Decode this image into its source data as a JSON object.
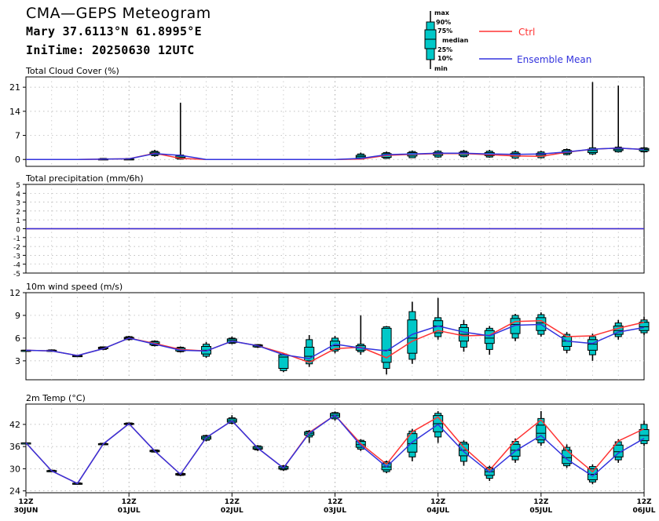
{
  "header": {
    "title": "CMA—GEPS Meteogram",
    "location": "Mary 37.6113°N 61.8995°E",
    "init_time": "IniTime: 20250630 12UTC"
  },
  "legend": {
    "box_labels": [
      "max",
      "90%",
      "75%",
      "median",
      "25%",
      "10%",
      "min"
    ],
    "ctrl_label": "Ctrl",
    "mean_label": "Ensemble Mean",
    "ctrl_color": "#ff3333",
    "mean_color": "#3333dd",
    "box_fill": "#00c8c8"
  },
  "time_axis": {
    "ticks": [
      {
        "top": "12Z",
        "bottom": "30JUN"
      },
      {
        "top": "12Z",
        "bottom": "01JUL"
      },
      {
        "top": "12Z",
        "bottom": "02JUL"
      },
      {
        "top": "12Z",
        "bottom": "03JUL"
      },
      {
        "top": "12Z",
        "bottom": "04JUL"
      },
      {
        "top": "12Z",
        "bottom": "05JUL"
      },
      {
        "top": "12Z",
        "bottom": "06JUL"
      }
    ],
    "steps_hours": 6,
    "n_steps": 25
  },
  "chart_data": [
    {
      "type": "boxplot",
      "title": "Total Cloud Cover (%)",
      "ylim": [
        -2,
        24
      ],
      "yticks": [
        0,
        7,
        14,
        21
      ],
      "grid": true,
      "boxes": [
        null,
        null,
        null,
        {
          "min": 0,
          "p10": 0,
          "p25": 0,
          "median": 0.1,
          "p75": 0.2,
          "p90": 0.3,
          "max": 0.4
        },
        {
          "min": 0,
          "p10": 0,
          "p25": 0,
          "median": 0.1,
          "p75": 0.2,
          "p90": 0.3,
          "max": 0.4
        },
        {
          "min": 0.8,
          "p10": 1.1,
          "p25": 1.4,
          "median": 1.8,
          "p75": 2.1,
          "p90": 2.4,
          "max": 2.8
        },
        {
          "min": 0,
          "p10": 0.1,
          "p25": 0.3,
          "median": 0.6,
          "p75": 1.0,
          "p90": 1.3,
          "max": 16.5
        },
        null,
        null,
        null,
        null,
        null,
        null,
        {
          "min": 0,
          "p10": 0.1,
          "p25": 0.4,
          "median": 0.8,
          "p75": 1.2,
          "p90": 1.6,
          "max": 2.0
        },
        {
          "min": 0.2,
          "p10": 0.3,
          "p25": 0.6,
          "median": 1.3,
          "p75": 1.7,
          "p90": 2.0,
          "max": 2.3
        },
        {
          "min": 0.4,
          "p10": 0.5,
          "p25": 1.0,
          "median": 1.6,
          "p75": 2.0,
          "p90": 2.3,
          "max": 2.6
        },
        {
          "min": 0.5,
          "p10": 0.7,
          "p25": 1.2,
          "median": 1.6,
          "p75": 2.0,
          "p90": 2.4,
          "max": 2.7
        },
        {
          "min": 0.6,
          "p10": 0.8,
          "p25": 1.2,
          "median": 1.7,
          "p75": 2.1,
          "p90": 2.4,
          "max": 2.8
        },
        {
          "min": 0.5,
          "p10": 0.7,
          "p25": 1.1,
          "median": 1.6,
          "p75": 2.0,
          "p90": 2.4,
          "max": 2.8
        },
        {
          "min": 0.2,
          "p10": 0.4,
          "p25": 0.9,
          "median": 1.4,
          "p75": 1.8,
          "p90": 2.2,
          "max": 2.6
        },
        {
          "min": 0.3,
          "p10": 0.5,
          "p25": 1.0,
          "median": 1.4,
          "p75": 1.8,
          "p90": 2.2,
          "max": 2.5
        },
        {
          "min": 1.2,
          "p10": 1.4,
          "p25": 1.8,
          "median": 2.2,
          "p75": 2.6,
          "p90": 2.9,
          "max": 3.2
        },
        {
          "min": 1.3,
          "p10": 1.6,
          "p25": 2.0,
          "median": 2.6,
          "p75": 3.0,
          "p90": 3.4,
          "max": 22.5
        },
        {
          "min": 2.0,
          "p10": 2.2,
          "p25": 2.6,
          "median": 3.0,
          "p75": 3.3,
          "p90": 3.6,
          "max": 21.5
        },
        {
          "min": 2.0,
          "p10": 2.2,
          "p25": 2.5,
          "median": 2.9,
          "p75": 3.2,
          "p90": 3.4,
          "max": 3.6
        }
      ],
      "ctrl": [
        0,
        0,
        0,
        0.1,
        0.2,
        1.8,
        0.3,
        0,
        0,
        0,
        0,
        0,
        0,
        0.1,
        1.2,
        1.5,
        1.7,
        1.7,
        1.4,
        1.0,
        0.9,
        2.1,
        3.0,
        3.3,
        2.9
      ],
      "mean": [
        0,
        0,
        0,
        0.1,
        0.2,
        1.7,
        1.2,
        0,
        0,
        0,
        0,
        0,
        0,
        0.3,
        1.4,
        1.6,
        1.8,
        1.8,
        1.6,
        1.5,
        1.6,
        2.2,
        3.0,
        3.3,
        2.9
      ]
    },
    {
      "type": "line",
      "title": "Total precipitation (mm/6h)",
      "ylim": [
        -5,
        5
      ],
      "yticks": [
        -5,
        -4,
        -3,
        -2,
        -1,
        0,
        1,
        2,
        3,
        4,
        5
      ],
      "grid": true,
      "ctrl": [
        0,
        0,
        0,
        0,
        0,
        0,
        0,
        0,
        0,
        0,
        0,
        0,
        0,
        0,
        0,
        0,
        0,
        0,
        0,
        0,
        0,
        0,
        0,
        0,
        0
      ],
      "mean": [
        0,
        0,
        0,
        0,
        0,
        0,
        0,
        0,
        0,
        0,
        0,
        0,
        0,
        0,
        0,
        0,
        0,
        0,
        0,
        0,
        0,
        0,
        0,
        0,
        0
      ]
    },
    {
      "type": "boxplot",
      "title": "10m wind speed (m/s)",
      "ylim": [
        0.5,
        12
      ],
      "yticks": [
        3,
        6,
        9,
        12
      ],
      "grid": true,
      "boxes": [
        {
          "min": 4.4,
          "p10": 4.4,
          "p25": 4.4,
          "median": 4.4,
          "p75": 4.4,
          "p90": 4.4,
          "max": 4.4
        },
        {
          "min": 4.2,
          "p10": 4.25,
          "p25": 4.3,
          "median": 4.35,
          "p75": 4.4,
          "p90": 4.45,
          "max": 4.5
        },
        {
          "min": 3.5,
          "p10": 3.55,
          "p25": 3.6,
          "median": 3.65,
          "p75": 3.7,
          "p90": 3.75,
          "max": 3.8
        },
        {
          "min": 4.4,
          "p10": 4.5,
          "p25": 4.6,
          "median": 4.7,
          "p75": 4.8,
          "p90": 4.85,
          "max": 4.9
        },
        {
          "min": 5.7,
          "p10": 5.8,
          "p25": 5.9,
          "median": 6.0,
          "p75": 6.1,
          "p90": 6.2,
          "max": 6.3
        },
        {
          "min": 4.9,
          "p10": 5.0,
          "p25": 5.1,
          "median": 5.3,
          "p75": 5.5,
          "p90": 5.6,
          "max": 5.7
        },
        {
          "min": 4.1,
          "p10": 4.2,
          "p25": 4.3,
          "median": 4.5,
          "p75": 4.7,
          "p90": 4.8,
          "max": 4.9
        },
        {
          "min": 3.4,
          "p10": 3.6,
          "p25": 3.9,
          "median": 4.4,
          "p75": 4.9,
          "p90": 5.2,
          "max": 5.5
        },
        {
          "min": 5.2,
          "p10": 5.3,
          "p25": 5.4,
          "median": 5.7,
          "p75": 5.9,
          "p90": 6.0,
          "max": 6.2
        },
        {
          "min": 4.7,
          "p10": 4.8,
          "p25": 4.85,
          "median": 5.0,
          "p75": 5.1,
          "p90": 5.15,
          "max": 5.2
        },
        {
          "min": 1.5,
          "p10": 1.7,
          "p25": 2.0,
          "median": 3.5,
          "p75": 3.8,
          "p90": 3.9,
          "max": 4.0
        },
        {
          "min": 2.2,
          "p10": 2.6,
          "p25": 3.0,
          "median": 3.6,
          "p75": 4.8,
          "p90": 5.8,
          "max": 6.4
        },
        {
          "min": 4.0,
          "p10": 4.3,
          "p25": 4.5,
          "median": 5.0,
          "p75": 5.6,
          "p90": 6.0,
          "max": 6.3
        },
        {
          "min": 3.8,
          "p10": 4.2,
          "p25": 4.4,
          "median": 4.7,
          "p75": 5.0,
          "p90": 5.2,
          "max": 9.0
        },
        {
          "min": 1.2,
          "p10": 2.0,
          "p25": 2.8,
          "median": 4.4,
          "p75": 7.3,
          "p90": 7.5,
          "max": 7.6
        },
        {
          "min": 2.6,
          "p10": 3.2,
          "p25": 4.0,
          "median": 6.0,
          "p75": 8.4,
          "p90": 9.5,
          "max": 10.8
        },
        {
          "min": 5.8,
          "p10": 6.2,
          "p25": 6.7,
          "median": 7.6,
          "p75": 8.3,
          "p90": 8.7,
          "max": 11.3
        },
        {
          "min": 4.2,
          "p10": 4.8,
          "p25": 5.6,
          "median": 6.5,
          "p75": 7.4,
          "p90": 7.8,
          "max": 8.4
        },
        {
          "min": 3.8,
          "p10": 4.5,
          "p25": 5.3,
          "median": 6.0,
          "p75": 7.0,
          "p90": 7.3,
          "max": 7.6
        },
        {
          "min": 5.6,
          "p10": 6.0,
          "p25": 6.6,
          "median": 7.8,
          "p75": 8.6,
          "p90": 9.0,
          "max": 9.2
        },
        {
          "min": 6.2,
          "p10": 6.5,
          "p25": 7.0,
          "median": 8.0,
          "p75": 8.7,
          "p90": 9.1,
          "max": 9.4
        },
        {
          "min": 4.0,
          "p10": 4.4,
          "p25": 4.9,
          "median": 5.6,
          "p75": 6.2,
          "p90": 6.5,
          "max": 6.8
        },
        {
          "min": 3.0,
          "p10": 3.8,
          "p25": 4.4,
          "median": 5.2,
          "p75": 5.8,
          "p90": 6.2,
          "max": 6.6
        },
        {
          "min": 5.8,
          "p10": 6.2,
          "p25": 6.5,
          "median": 7.0,
          "p75": 7.6,
          "p90": 8.0,
          "max": 8.4
        },
        {
          "min": 6.4,
          "p10": 6.7,
          "p25": 7.0,
          "median": 7.5,
          "p75": 8.1,
          "p90": 8.4,
          "max": 8.8
        }
      ],
      "ctrl": [
        4.4,
        4.3,
        3.7,
        4.6,
        6.0,
        5.3,
        4.5,
        4.3,
        5.6,
        5.0,
        4.0,
        2.8,
        4.6,
        4.8,
        3.4,
        5.6,
        7.0,
        6.3,
        6.4,
        8.2,
        8.3,
        6.2,
        6.3,
        7.3,
        8.1
      ],
      "mean": [
        4.4,
        4.3,
        3.7,
        4.6,
        6.0,
        5.2,
        4.4,
        4.3,
        5.6,
        5.0,
        3.8,
        3.3,
        5.2,
        4.7,
        4.3,
        6.5,
        7.6,
        6.8,
        6.3,
        7.7,
        7.8,
        5.6,
        5.3,
        6.8,
        7.4
      ]
    },
    {
      "type": "boxplot",
      "title": "2m Temp (°C)",
      "ylim": [
        23.5,
        47.5
      ],
      "yticks": [
        24,
        30,
        36,
        42
      ],
      "grid": true,
      "boxes": [
        {
          "min": 37,
          "p10": 37,
          "p25": 37,
          "median": 37,
          "p75": 37,
          "p90": 37,
          "max": 37
        },
        {
          "min": 29.1,
          "p10": 29.2,
          "p25": 29.3,
          "median": 29.4,
          "p75": 29.5,
          "p90": 29.6,
          "max": 29.7
        },
        {
          "min": 25.7,
          "p10": 25.8,
          "p25": 25.9,
          "median": 26.0,
          "p75": 26.1,
          "p90": 26.2,
          "max": 26.3
        },
        {
          "min": 36.4,
          "p10": 36.5,
          "p25": 36.6,
          "median": 36.7,
          "p75": 36.8,
          "p90": 36.9,
          "max": 37.0
        },
        {
          "min": 41.8,
          "p10": 41.9,
          "p25": 42.0,
          "median": 42.2,
          "p75": 42.3,
          "p90": 42.4,
          "max": 42.5
        },
        {
          "min": 34.4,
          "p10": 34.5,
          "p25": 34.6,
          "median": 34.8,
          "p75": 35.0,
          "p90": 35.1,
          "max": 35.2
        },
        {
          "min": 28.0,
          "p10": 28.2,
          "p25": 28.3,
          "median": 28.5,
          "p75": 28.7,
          "p90": 28.8,
          "max": 28.9
        },
        {
          "min": 37.4,
          "p10": 37.7,
          "p25": 38.0,
          "median": 38.4,
          "p75": 38.8,
          "p90": 39.0,
          "max": 39.2
        },
        {
          "min": 42.0,
          "p10": 42.3,
          "p25": 42.6,
          "median": 43.0,
          "p75": 43.5,
          "p90": 43.8,
          "max": 44.5
        },
        {
          "min": 34.8,
          "p10": 35.1,
          "p25": 35.3,
          "median": 35.6,
          "p75": 36.0,
          "p90": 36.2,
          "max": 36.4
        },
        {
          "min": 29.4,
          "p10": 29.7,
          "p25": 29.9,
          "median": 30.2,
          "p75": 30.6,
          "p90": 30.8,
          "max": 31.0
        },
        {
          "min": 37.0,
          "p10": 38.6,
          "p25": 39.1,
          "median": 39.6,
          "p75": 40.0,
          "p90": 40.2,
          "max": 40.5
        },
        {
          "min": 43.0,
          "p10": 43.5,
          "p25": 43.9,
          "median": 44.5,
          "p75": 45.0,
          "p90": 45.2,
          "max": 45.5
        },
        {
          "min": 34.8,
          "p10": 35.3,
          "p25": 35.8,
          "median": 36.5,
          "p75": 37.4,
          "p90": 37.7,
          "max": 38.0
        },
        {
          "min": 28.8,
          "p10": 29.2,
          "p25": 29.7,
          "median": 30.5,
          "p75": 31.5,
          "p90": 31.9,
          "max": 32.2
        },
        {
          "min": 32.0,
          "p10": 33.2,
          "p25": 34.5,
          "median": 36.8,
          "p75": 39.5,
          "p90": 40.2,
          "max": 40.8
        },
        {
          "min": 37.0,
          "p10": 38.6,
          "p25": 40.0,
          "median": 42.2,
          "p75": 44.4,
          "p90": 45.0,
          "max": 45.6
        },
        {
          "min": 30.8,
          "p10": 32.0,
          "p25": 33.5,
          "median": 35.0,
          "p75": 36.7,
          "p90": 37.2,
          "max": 37.7
        },
        {
          "min": 26.7,
          "p10": 27.4,
          "p25": 28.2,
          "median": 29.2,
          "p75": 30.0,
          "p90": 30.4,
          "max": 30.8
        },
        {
          "min": 31.6,
          "p10": 32.4,
          "p25": 33.4,
          "median": 35.0,
          "p75": 36.6,
          "p90": 37.4,
          "max": 38.2
        },
        {
          "min": 36.2,
          "p10": 37.0,
          "p25": 37.8,
          "median": 39.6,
          "p75": 41.8,
          "p90": 43.6,
          "max": 45.6
        },
        {
          "min": 30.2,
          "p10": 30.8,
          "p25": 31.4,
          "median": 33.0,
          "p75": 35.0,
          "p90": 35.8,
          "max": 36.6
        },
        {
          "min": 25.8,
          "p10": 26.4,
          "p25": 27.0,
          "median": 28.5,
          "p75": 30.0,
          "p90": 30.6,
          "max": 31.2
        },
        {
          "min": 31.6,
          "p10": 32.4,
          "p25": 33.2,
          "median": 34.6,
          "p75": 36.4,
          "p90": 37.3,
          "max": 38.0
        },
        {
          "min": 36.2,
          "p10": 36.8,
          "p25": 37.6,
          "median": 39.0,
          "p75": 40.6,
          "p90": 42.0,
          "max": 43.0
        }
      ],
      "ctrl": [
        37,
        29.4,
        26,
        36.7,
        42.2,
        34.8,
        28.5,
        38.4,
        43.0,
        35.6,
        30.2,
        39.8,
        44.5,
        36.8,
        31.2,
        40.0,
        44.0,
        35.8,
        29.6,
        37.6,
        43.2,
        35.0,
        29.2,
        37.5,
        40.8
      ],
      "mean": [
        37,
        29.4,
        26,
        36.7,
        42.2,
        34.8,
        28.5,
        38.4,
        43.0,
        35.6,
        30.2,
        39.6,
        44.5,
        36.3,
        30.5,
        37.2,
        42.0,
        34.6,
        29.0,
        34.8,
        39.0,
        32.6,
        28.0,
        34.2,
        38.2
      ]
    }
  ]
}
